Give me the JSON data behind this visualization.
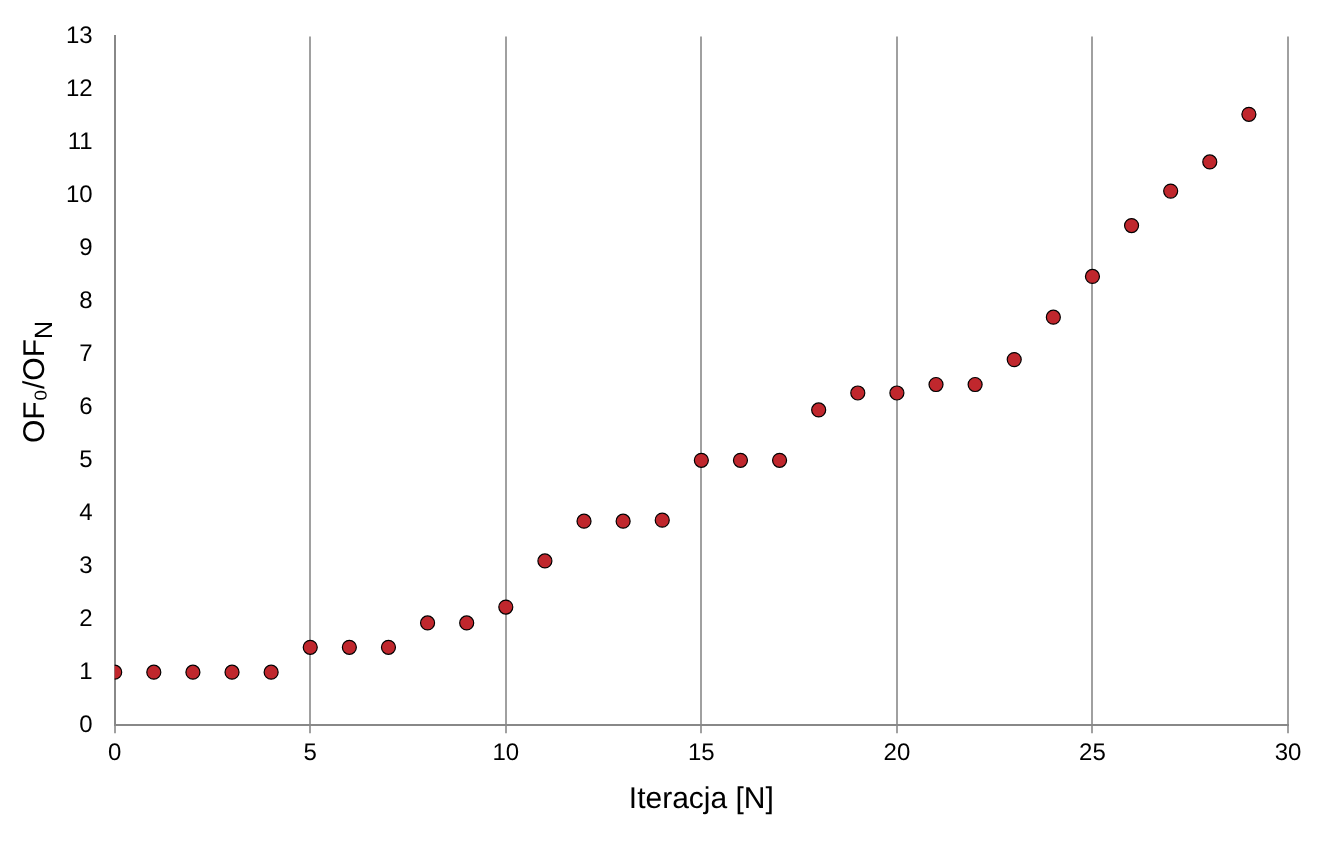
{
  "chart_data": {
    "type": "scatter",
    "xlabel": "Iteracja [N]",
    "ylabel": "OF₀/OF$_{N}$",
    "x": [
      0,
      1,
      2,
      3,
      4,
      5,
      6,
      7,
      8,
      9,
      10,
      11,
      12,
      13,
      14,
      15,
      16,
      17,
      18,
      19,
      20,
      21,
      22,
      23,
      24,
      25,
      26,
      27,
      28,
      29
    ],
    "series": [
      {
        "color": "#c0272d",
        "values": [
          1,
          1,
          1,
          1,
          1,
          1.47,
          1.47,
          1.47,
          1.93,
          1.93,
          2.23,
          3.1,
          3.85,
          3.85,
          3.87,
          5.0,
          5.0,
          5.0,
          5.95,
          6.27,
          6.27,
          6.43,
          6.43,
          6.9,
          7.7,
          8.47,
          9.43,
          10.08,
          10.63,
          11.53
        ]
      }
    ],
    "xlim": [
      0,
      30
    ],
    "xticks": [
      0,
      5,
      10,
      15,
      20,
      25,
      30
    ],
    "ylim": [
      0,
      13
    ],
    "yticks": [
      0,
      1,
      2,
      3,
      4,
      5,
      6,
      7,
      8,
      9,
      10,
      11,
      12,
      13
    ],
    "grid": "x",
    "marker": "circle",
    "legend": false
  }
}
